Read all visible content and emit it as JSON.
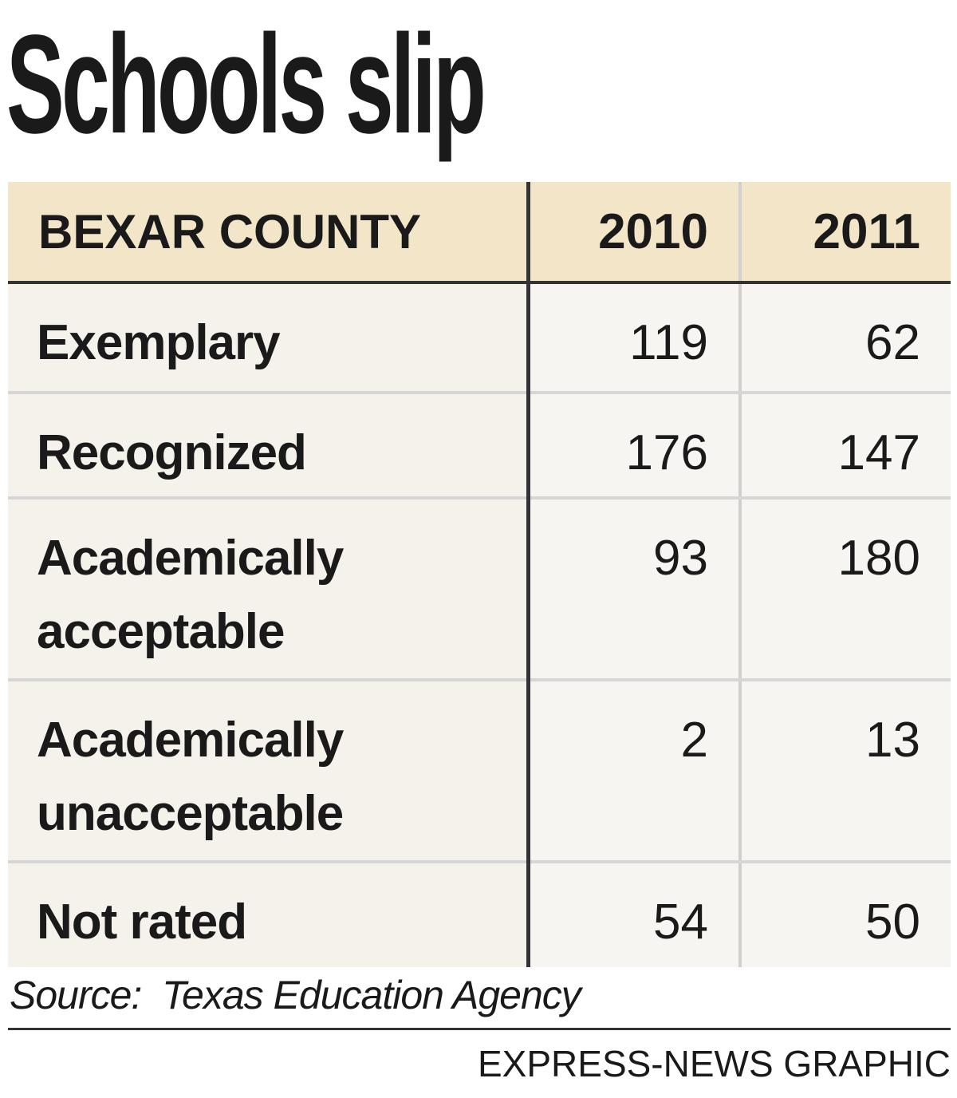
{
  "title": "Schools slip",
  "table": {
    "header": [
      "BEXAR COUNTY",
      "2010",
      "2011"
    ],
    "rows": [
      [
        "Exemplary",
        119,
        62
      ],
      [
        "Recognized",
        176,
        147
      ],
      [
        "Academically acceptable",
        93,
        180
      ],
      [
        "Academically unacceptable",
        2,
        13
      ],
      [
        "Not rated",
        54,
        50
      ]
    ]
  },
  "source": "Source:  Texas Education Agency",
  "credit": "EXPRESS-NEWS GRAPHIC"
}
